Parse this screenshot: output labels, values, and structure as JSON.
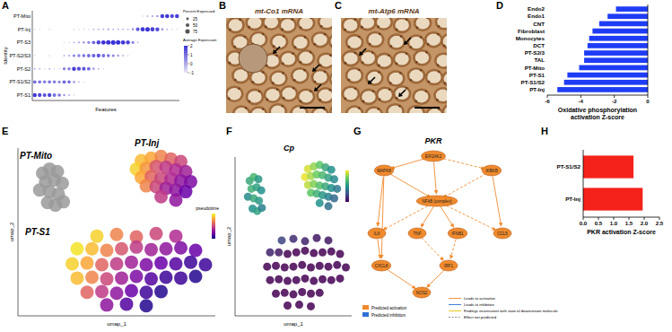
{
  "panel_labels": [
    "A",
    "B",
    "C",
    "D",
    "E",
    "F",
    "G",
    "H"
  ],
  "chart_data": [
    {
      "type": "dot_plot",
      "x_label": "Features",
      "y_label": "Identity",
      "categories": [
        null,
        null,
        null,
        null,
        null,
        null,
        null,
        null,
        null,
        null,
        null,
        null,
        null,
        null,
        null,
        null,
        null,
        null,
        null,
        null,
        null,
        null,
        null,
        null,
        null,
        null,
        null,
        null,
        null,
        null
      ],
      "rows": [
        "PT-S1",
        "PT-S1/S2",
        "PT-S2",
        "PT-S2/S3",
        "PT-S3",
        "PT-Inj",
        "PT-Mito"
      ],
      "percent_expressed": [
        [
          60,
          55,
          50,
          55,
          45,
          40,
          20,
          10,
          5,
          0,
          0,
          0,
          0,
          0,
          0,
          0,
          0,
          0,
          0,
          0,
          0,
          0,
          0,
          0,
          0,
          0,
          0,
          0,
          0,
          0
        ],
        [
          45,
          40,
          35,
          40,
          35,
          30,
          45,
          40,
          20,
          10,
          5,
          0,
          0,
          0,
          0,
          0,
          0,
          0,
          0,
          0,
          0,
          0,
          0,
          0,
          0,
          0,
          0,
          0,
          0,
          0
        ],
        [
          10,
          10,
          5,
          10,
          5,
          5,
          30,
          35,
          60,
          55,
          50,
          45,
          20,
          10,
          5,
          0,
          0,
          0,
          0,
          0,
          0,
          0,
          0,
          0,
          0,
          0,
          0,
          0,
          0,
          0
        ],
        [
          5,
          0,
          0,
          5,
          0,
          0,
          10,
          15,
          30,
          35,
          40,
          45,
          50,
          55,
          45,
          40,
          30,
          20,
          10,
          5,
          0,
          0,
          0,
          0,
          0,
          0,
          0,
          0,
          0,
          0
        ],
        [
          0,
          0,
          0,
          0,
          0,
          0,
          5,
          5,
          10,
          15,
          20,
          30,
          45,
          60,
          70,
          75,
          80,
          75,
          70,
          60,
          30,
          10,
          0,
          0,
          0,
          0,
          0,
          0,
          0,
          0
        ],
        [
          5,
          5,
          0,
          5,
          0,
          0,
          0,
          0,
          5,
          5,
          5,
          5,
          10,
          10,
          10,
          15,
          10,
          10,
          10,
          10,
          20,
          50,
          70,
          75,
          65,
          60,
          20,
          10,
          5,
          5
        ],
        [
          0,
          0,
          0,
          0,
          0,
          0,
          0,
          0,
          0,
          0,
          0,
          0,
          0,
          0,
          0,
          0,
          0,
          0,
          0,
          0,
          0,
          0,
          5,
          10,
          15,
          20,
          60,
          65,
          55,
          60
        ]
      ],
      "average_expression": [
        [
          1.9,
          1.7,
          1.5,
          1.7,
          1.0,
          0.9,
          0.3,
          0.1,
          -0.4,
          -0.6,
          -0.6,
          -0.6,
          -0.6,
          -0.6,
          -0.6,
          -0.6,
          -0.6,
          -0.6,
          -0.6,
          -0.6,
          -0.6,
          -0.6,
          -0.6,
          -0.6,
          -0.6,
          -0.6,
          -0.6,
          -0.6,
          -0.6,
          -0.6
        ],
        [
          1.0,
          0.9,
          0.8,
          0.9,
          0.8,
          0.7,
          1.1,
          1.0,
          0.3,
          0.0,
          -0.4,
          -0.6,
          -0.6,
          -0.6,
          -0.6,
          -0.6,
          -0.6,
          -0.6,
          -0.6,
          -0.6,
          -0.6,
          -0.6,
          -0.6,
          -0.6,
          -0.6,
          -0.6,
          -0.6,
          -0.6,
          -0.6,
          -0.6
        ],
        [
          0.0,
          0.0,
          -0.4,
          0.0,
          -0.4,
          -0.4,
          0.7,
          0.8,
          1.8,
          1.6,
          1.4,
          1.1,
          0.3,
          0.0,
          -0.4,
          -0.6,
          -0.6,
          -0.6,
          -0.6,
          -0.6,
          -0.6,
          -0.6,
          -0.6,
          -0.6,
          -0.6,
          -0.6,
          -0.6,
          -0.6,
          -0.6,
          -0.6
        ],
        [
          -0.4,
          -0.6,
          -0.6,
          -0.4,
          -0.6,
          -0.6,
          0.0,
          0.1,
          0.6,
          0.7,
          0.9,
          1.0,
          1.2,
          1.4,
          1.0,
          0.9,
          0.6,
          0.3,
          0.0,
          -0.4,
          -0.6,
          -0.6,
          -0.6,
          -0.6,
          -0.6,
          -0.6,
          -0.6,
          -0.6,
          -0.6,
          -0.6
        ],
        [
          -0.6,
          -0.6,
          -0.6,
          -0.6,
          -0.6,
          -0.6,
          -0.4,
          -0.4,
          0.0,
          0.1,
          0.3,
          0.6,
          1.1,
          1.7,
          2.0,
          2.0,
          2.0,
          2.0,
          1.9,
          1.7,
          0.7,
          0.0,
          -0.6,
          -0.6,
          -0.6,
          -0.6,
          -0.6,
          -0.6,
          -0.6,
          -0.6
        ],
        [
          -0.4,
          -0.4,
          -0.6,
          -0.4,
          -0.6,
          -0.6,
          -0.6,
          -0.6,
          -0.4,
          -0.4,
          -0.4,
          -0.4,
          0.0,
          0.0,
          0.0,
          0.1,
          0.0,
          0.0,
          0.0,
          0.0,
          0.3,
          1.4,
          1.9,
          2.0,
          1.8,
          1.6,
          0.3,
          0.0,
          -0.4,
          -0.4
        ],
        [
          -0.6,
          -0.6,
          -0.6,
          -0.6,
          -0.6,
          -0.6,
          -0.6,
          -0.6,
          -0.6,
          -0.6,
          -0.6,
          -0.6,
          -0.6,
          -0.6,
          -0.6,
          -0.6,
          -0.6,
          -0.6,
          -0.6,
          -0.6,
          -0.6,
          -0.6,
          -0.4,
          0.0,
          0.1,
          0.3,
          1.8,
          1.9,
          1.6,
          1.8
        ]
      ],
      "size_legend_title": "Percent Expressed",
      "size_ticks": [
        25,
        50,
        75
      ],
      "color_legend_title": "Average Expression",
      "color_range": [
        -1,
        2
      ],
      "color_ticks": [
        2,
        1,
        0,
        -1
      ]
    },
    {
      "type": "image",
      "title": "mt-Co1 mRNA"
    },
    {
      "type": "image",
      "title": "mt-Atp6 mRNA"
    },
    {
      "type": "bar",
      "orientation": "horizontal",
      "categories": [
        "Endo2",
        "Endo1",
        "CNT",
        "Fibroblast",
        "Monocytes",
        "DCT",
        "PT-S2/3",
        "TAL",
        "PT-Mito",
        "PT-S1",
        "PT-S1/S2",
        "PT-Inj"
      ],
      "values": [
        -1.9,
        -2.4,
        -2.9,
        -3.3,
        -3.5,
        -3.6,
        -3.8,
        -3.8,
        -4.1,
        -4.8,
        -5.0,
        -5.4
      ],
      "color": "#1f3cf5",
      "xlim": [
        -6,
        0
      ],
      "xticks": [
        -6,
        -4,
        -2,
        0
      ],
      "x_label": [
        "Oxidative phosphorylation",
        "activation Z-score"
      ]
    },
    {
      "type": "scatter",
      "x_label": "umap_1",
      "y_label": "umap_2",
      "xlim": [
        -10,
        10
      ],
      "ylim": [
        -10,
        10
      ],
      "tick_labels": false,
      "color": "plasma",
      "color_range": [
        0,
        1
      ],
      "colorbar_title": "pseudotime",
      "annotations": [
        "PT-Mito",
        "PT-Inj",
        "PT-S1"
      ],
      "x": [
        -7.5,
        -6.8,
        -6,
        -7.2,
        -6.3,
        -5.5,
        -7.8,
        -6.8,
        -5.9,
        -7,
        -6.2,
        -5.4,
        2.5,
        3.5,
        4.5,
        5.5,
        6.5,
        2,
        3,
        4,
        5,
        6,
        7,
        2.5,
        3.5,
        4.5,
        5.5,
        6.5,
        7.5,
        3,
        4,
        5,
        6,
        7,
        4.5,
        6,
        -2,
        0,
        2,
        4,
        6,
        -4,
        -2.5,
        -1,
        0.5,
        2,
        3.5,
        5,
        6.5,
        8,
        -4.5,
        -3,
        -1.5,
        0,
        1.5,
        3,
        4.5,
        6,
        7.5,
        9,
        -4,
        -2.5,
        -1,
        0.5,
        2,
        3.5,
        5,
        6.5,
        8,
        -3,
        -1.5,
        0,
        1.5,
        3,
        4.5,
        -1,
        1,
        3
      ],
      "y": [
        7,
        7.5,
        7.2,
        6,
        6.2,
        5.8,
        5,
        4.8,
        4.5,
        3.5,
        3.2,
        3.6,
        8.5,
        8.8,
        9,
        8.7,
        8.4,
        7.5,
        7.6,
        7.8,
        7.7,
        7.4,
        7.2,
        6.5,
        6.6,
        6.4,
        6.3,
        6.1,
        6,
        5.5,
        5.4,
        5.2,
        5,
        4.8,
        4.2,
        3.8,
        -0.5,
        -0.3,
        -0.6,
        -0.2,
        -0.5,
        -2,
        -2,
        -2.2,
        -2,
        -1.8,
        -2.1,
        -2,
        -1.9,
        -2.2,
        -3.8,
        -3.7,
        -3.9,
        -3.8,
        -3.6,
        -3.9,
        -3.7,
        -3.8,
        -3.6,
        -3.9,
        -5.5,
        -5.4,
        -5.6,
        -5.5,
        -5.3,
        -5.6,
        -5.4,
        -5.5,
        -5.3,
        -7.2,
        -7.1,
        -7.3,
        -7,
        -7.2,
        -7.1,
        -8.7,
        -8.6,
        -8.8
      ],
      "color_values": [
        null,
        null,
        null,
        null,
        null,
        null,
        null,
        null,
        null,
        null,
        null,
        null,
        0.85,
        0.8,
        0.7,
        0.6,
        0.5,
        0.9,
        0.75,
        0.55,
        0.45,
        0.4,
        0.35,
        0.8,
        0.6,
        0.5,
        0.4,
        0.3,
        0.25,
        0.7,
        0.5,
        0.35,
        0.3,
        0.2,
        0.45,
        0.3,
        0.9,
        0.7,
        0.6,
        0.5,
        0.4,
        0.95,
        0.85,
        0.7,
        0.55,
        0.45,
        0.35,
        0.3,
        0.25,
        0.2,
        0.9,
        0.8,
        0.6,
        0.45,
        0.35,
        0.25,
        0.2,
        0.15,
        0.1,
        0.1,
        0.85,
        0.7,
        0.5,
        0.35,
        0.25,
        0.15,
        0.1,
        0.1,
        0.05,
        0.6,
        0.45,
        0.3,
        0.2,
        0.1,
        0.05,
        0.3,
        0.15,
        0.05
      ]
    },
    {
      "type": "scatter",
      "title": "Cp",
      "x_label": "umap_1",
      "y_label": "umap_2",
      "xlim": [
        -10,
        10
      ],
      "ylim": [
        -10,
        10
      ],
      "tick_labels": false,
      "color": "viridis",
      "color_range": [
        0,
        3
      ],
      "x": [
        -7.5,
        -6.8,
        -6,
        -7.2,
        -6.3,
        -5.5,
        -7.8,
        -6.8,
        -5.9,
        -7,
        -6.2,
        -5.4,
        2.5,
        3.5,
        4.5,
        5.5,
        6.5,
        2,
        3,
        4,
        5,
        6,
        7,
        2.5,
        3.5,
        4.5,
        5.5,
        6.5,
        7.5,
        3,
        4,
        5,
        6,
        7,
        4.5,
        6,
        -2,
        0,
        2,
        4,
        6,
        -4,
        -2.5,
        -1,
        0.5,
        2,
        3.5,
        5,
        6.5,
        8,
        -4.5,
        -3,
        -1.5,
        0,
        1.5,
        3,
        4.5,
        6,
        7.5,
        9,
        -4,
        -2.5,
        -1,
        0.5,
        2,
        3.5,
        5,
        6.5,
        8,
        -3,
        -1.5,
        0,
        1.5,
        3,
        4.5,
        -1,
        1,
        3
      ],
      "y": [
        7,
        7.5,
        7.2,
        6,
        6.2,
        5.8,
        5,
        4.8,
        4.5,
        3.5,
        3.2,
        3.6,
        8.5,
        8.8,
        9,
        8.7,
        8.4,
        7.5,
        7.6,
        7.8,
        7.7,
        7.4,
        7.2,
        6.5,
        6.6,
        6.4,
        6.3,
        6.1,
        6,
        5.5,
        5.4,
        5.2,
        5,
        4.8,
        4.2,
        3.8,
        -0.5,
        -0.3,
        -0.6,
        -0.2,
        -0.5,
        -2,
        -2,
        -2.2,
        -2,
        -1.8,
        -2.1,
        -2,
        -1.9,
        -2.2,
        -3.8,
        -3.7,
        -3.9,
        -3.8,
        -3.6,
        -3.9,
        -3.7,
        -3.8,
        -3.6,
        -3.9,
        -5.5,
        -5.4,
        -5.6,
        -5.5,
        -5.3,
        -5.6,
        -5.4,
        -5.5,
        -5.3,
        -7.2,
        -7.1,
        -7.3,
        -7,
        -7.2,
        -7.1,
        -8.7,
        -8.6,
        -8.8
      ],
      "color_values": [
        1.8,
        2,
        1.6,
        1.9,
        1.7,
        1.5,
        1.4,
        1.8,
        1.6,
        1.5,
        1.7,
        1.3,
        2.8,
        2.5,
        2.2,
        1.8,
        1.5,
        2.9,
        2.6,
        2.3,
        2,
        1.7,
        1.4,
        2.7,
        2.4,
        2.1,
        1.8,
        1.5,
        1.2,
        2.2,
        1.9,
        1.6,
        1.3,
        1,
        1.5,
        1.1,
        0.6,
        0.4,
        0.3,
        0.2,
        0.2,
        0.3,
        0.2,
        0,
        0,
        0,
        0,
        0,
        0,
        0,
        0,
        0,
        0,
        0,
        0,
        0,
        0,
        0,
        0,
        0,
        0,
        0,
        0,
        0,
        0,
        0,
        0,
        0,
        0,
        0,
        0,
        0,
        0,
        0,
        0,
        0,
        0,
        0
      ]
    },
    {
      "type": "bar",
      "orientation": "horizontal",
      "categories": [
        "PT-S1/S2",
        "PT-Inj"
      ],
      "values": [
        1.65,
        1.95
      ],
      "color": "#f4221a",
      "xlim": [
        0,
        2.5
      ],
      "xticks": [
        {
          "value": 0,
          "label": "0.0"
        },
        {
          "value": 0.5,
          "label": "0.5"
        },
        {
          "value": 1,
          "label": "1.0"
        },
        {
          "value": 1.5,
          "label": "1.5"
        },
        {
          "value": 2,
          "label": "2.0"
        },
        {
          "value": 2.5,
          "label": "2.5"
        }
      ],
      "x_label": [
        "PKR activation Z-score"
      ]
    }
  ],
  "diagram": {
    "title": "PKR",
    "nodes": [
      "EIF2AK2",
      "MAPK8",
      "IKBKB",
      "NFkB (complex)",
      "IL6",
      "TNF",
      "IFNB1",
      "CCL5",
      "CXCL8",
      "IRF1",
      "NOS2"
    ],
    "edges": [
      [
        0,
        1
      ],
      [
        0,
        2
      ],
      [
        0,
        3
      ],
      [
        1,
        3
      ],
      [
        2,
        3
      ],
      [
        1,
        4
      ],
      [
        1,
        8
      ],
      [
        3,
        4
      ],
      [
        3,
        5
      ],
      [
        3,
        6
      ],
      [
        3,
        7
      ],
      [
        2,
        7
      ],
      [
        4,
        8
      ],
      [
        5,
        9
      ],
      [
        8,
        10
      ],
      [
        9,
        10
      ],
      [
        6,
        9
      ]
    ],
    "node_legend": [
      "Predicted activation",
      "Predicted inhibition"
    ],
    "edge_legend": [
      "Leads to activation",
      "Leads to inhibition",
      "Findings inconsistent with state of downstream molecule",
      "Effect not predicted"
    ]
  }
}
